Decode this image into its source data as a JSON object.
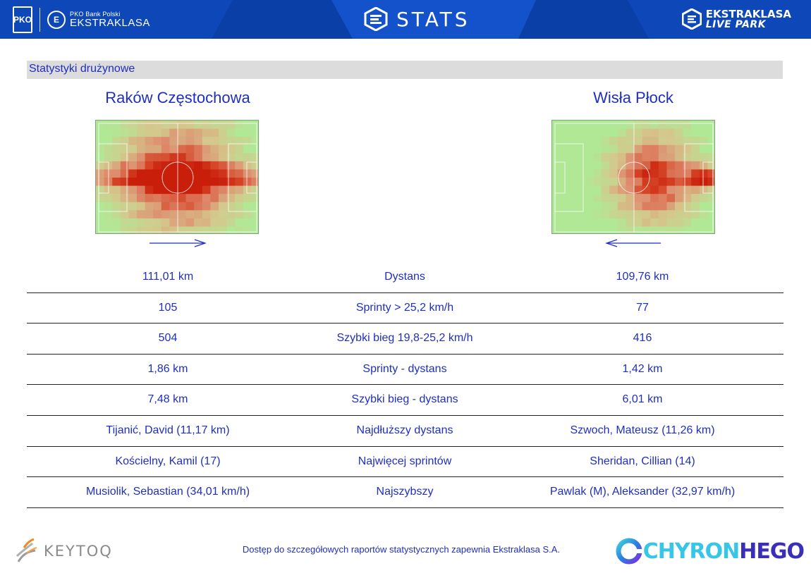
{
  "header": {
    "pko_label": "PKO",
    "ek_badge_label": "E",
    "ek_small": "PKO Bank Polski",
    "ek_big": "EKSTRAKLASA",
    "stats_title": "STATS",
    "livepark_line1": "EKSTRAKLASA",
    "livepark_line2": "LIVE PARK",
    "colors": {
      "bar": "#0a3fa8",
      "accent": "#1a56d6"
    }
  },
  "section_title": "Statystyki drużynowe",
  "teams": {
    "home": {
      "name": "Raków Częstochowa",
      "attack_direction": "right"
    },
    "away": {
      "name": "Wisła Płock",
      "attack_direction": "left"
    }
  },
  "stats": [
    {
      "home": "111,01 km",
      "label": "Dystans",
      "away": "109,76 km"
    },
    {
      "home": "105",
      "label": "Sprinty > 25,2 km/h",
      "away": "77"
    },
    {
      "home": "504",
      "label": "Szybki bieg 19,8-25,2 km/h",
      "away": "416"
    },
    {
      "home": "1,86 km",
      "label": "Sprinty - dystans",
      "away": "1,42 km"
    },
    {
      "home": "7,48 km",
      "label": "Szybki bieg - dystans",
      "away": "6,01 km"
    },
    {
      "home": "Tijanić, David (11,17 km)",
      "label": "Najdłuższy dystans",
      "away": "Szwoch, Mateusz (11,26 km)"
    },
    {
      "home": "Kościelny, Kamil (17)",
      "label": "Najwięcej sprintów",
      "away": "Sheridan, Cillian (14)"
    },
    {
      "home": "Musiolik, Sebastian (34,01 km/h)",
      "label": "Najszybszy",
      "away": "Pawlak (M), Aleksander (32,97 km/h)"
    }
  ],
  "footer": {
    "keytoq": "KEYTOQ",
    "note": "Dostęp do szczegółowych raportów statystycznych zapewnia Ekstraklasa S.A.",
    "chyron_part1": "CHYRON",
    "chyron_part2": "HEGO"
  }
}
